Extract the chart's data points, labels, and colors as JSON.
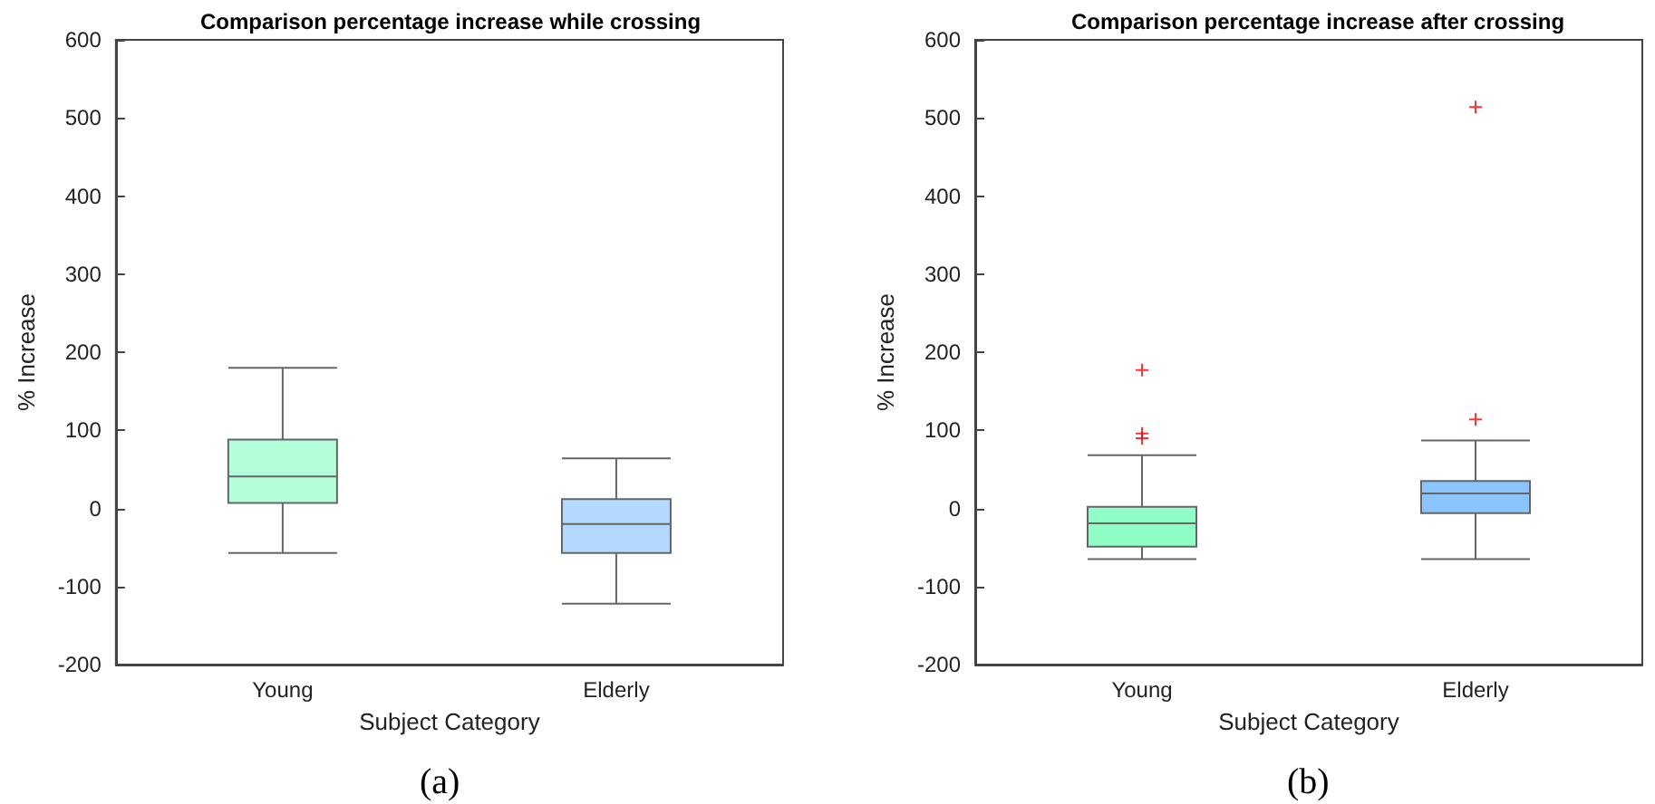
{
  "chart_data": [
    {
      "type": "box",
      "title": "Comparison percentage increase while crossing",
      "xlabel": "Subject Category",
      "ylabel": "% Increase",
      "categories": [
        "Young",
        "Elderly"
      ],
      "colors": [
        "#b3ffd9",
        "#b3d9ff"
      ],
      "boxes": [
        {
          "low": -57,
          "q1": 7,
          "median": 41,
          "q3": 88,
          "high": 180
        },
        {
          "low": -122,
          "q1": -57,
          "median": -20,
          "q3": 12,
          "high": 64
        }
      ],
      "ylim": [
        -200,
        600
      ],
      "yticks": [
        -200,
        -100,
        0,
        100,
        200,
        300,
        400,
        500,
        600
      ],
      "grid": false,
      "annotations": [
        "(a)"
      ]
    },
    {
      "type": "box",
      "title": "Comparison percentage increase after crossing",
      "xlabel": "Subject Category",
      "ylabel": "% Increase",
      "categories": [
        "Young",
        "Elderly"
      ],
      "colors": [
        "#8fffc7",
        "#8cc4ff"
      ],
      "boxes": [
        {
          "low": -65,
          "q1": -49,
          "median": -19,
          "q3": 2,
          "high": 68,
          "outliers": [
            177,
            96,
            90
          ]
        },
        {
          "low": -65,
          "q1": -6,
          "median": 19,
          "q3": 35,
          "high": 87,
          "outliers": [
            514,
            114
          ]
        }
      ],
      "ylim": [
        -200,
        600
      ],
      "yticks": [
        -200,
        -100,
        0,
        100,
        200,
        300,
        400,
        500,
        600
      ],
      "grid": false,
      "annotations": [
        "(b)"
      ]
    }
  ]
}
